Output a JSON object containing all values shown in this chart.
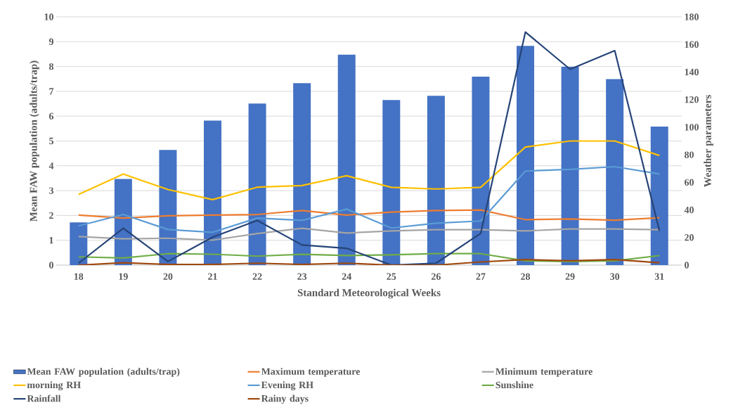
{
  "chart_data": {
    "type": "bar",
    "xlabel": "Standard Meteorological Weeks",
    "ylabel": "Mean FAW population (adults/trap)",
    "y2label": "Weather parameters",
    "categories": [
      "18",
      "19",
      "20",
      "21",
      "22",
      "23",
      "24",
      "25",
      "26",
      "27",
      "28",
      "29",
      "30",
      "31"
    ],
    "ylim": [
      0,
      10
    ],
    "yticks": [
      0,
      1,
      2,
      3,
      4,
      5,
      6,
      7,
      8,
      9,
      10
    ],
    "y2lim": [
      0,
      180
    ],
    "y2ticks": [
      0,
      20,
      40,
      60,
      80,
      100,
      120,
      140,
      160,
      180
    ],
    "grid": "y",
    "legend": "bottom",
    "series": [
      {
        "name": "Mean FAW population (adults/trap)",
        "color": "#4472c4",
        "values": [
          1.72,
          3.47,
          4.64,
          5.82,
          6.51,
          7.33,
          8.48,
          6.65,
          6.82,
          7.59,
          8.83,
          7.99,
          7.49,
          5.58
        ]
      },
      {
        "name": "Maximum temperature",
        "type": "line",
        "axis": "y2",
        "color": "#ed7d31",
        "values": [
          36.3,
          34.1,
          35.8,
          36.3,
          36.7,
          39.6,
          36.3,
          38.4,
          39.6,
          40,
          33,
          33.5,
          32.6,
          34.4
        ]
      },
      {
        "name": "Minimum temperature",
        "type": "line",
        "axis": "y2",
        "color": "#a5a5a5",
        "values": [
          20.7,
          19.1,
          19.5,
          18.1,
          22.9,
          26.7,
          23.3,
          24.8,
          25.7,
          25.7,
          24.8,
          26.2,
          26.2,
          25.7
        ]
      },
      {
        "name": "morning RH",
        "type": "line",
        "axis": "y2",
        "color": "#ffc000",
        "values": [
          51.3,
          66,
          54.8,
          47.5,
          56.5,
          57.7,
          64.8,
          56.4,
          55.2,
          56.4,
          85.6,
          90,
          90,
          79.5
        ]
      },
      {
        "name": "Evening RH",
        "type": "line",
        "axis": "y2",
        "color": "#5b9bd5",
        "values": [
          28.4,
          36.7,
          25.8,
          23.8,
          34.1,
          32.4,
          40.6,
          26.9,
          30.4,
          32,
          68.2,
          69.4,
          71.4,
          66.1
        ]
      },
      {
        "name": "Sunshine",
        "type": "line",
        "axis": "y2",
        "color": "#70ad47",
        "values": [
          6,
          5.2,
          8.3,
          7.9,
          6.5,
          7.8,
          6.9,
          7.5,
          8.3,
          8.3,
          3.1,
          2.6,
          3.1,
          6.9
        ]
      },
      {
        "name": "Rainfall",
        "type": "line",
        "axis": "y2",
        "color": "#264478",
        "values": [
          1.4,
          26.7,
          2.6,
          20.3,
          32.4,
          14.6,
          12.2,
          0,
          1.4,
          23,
          169,
          142,
          155.5,
          24.8
        ]
      },
      {
        "name": "Rainy days",
        "type": "line",
        "axis": "y2",
        "color": "#9e480e",
        "values": [
          0,
          1.7,
          0.5,
          0.5,
          1.4,
          0.5,
          1.4,
          0,
          0,
          2.3,
          4,
          3.1,
          4,
          1.7
        ]
      }
    ]
  }
}
